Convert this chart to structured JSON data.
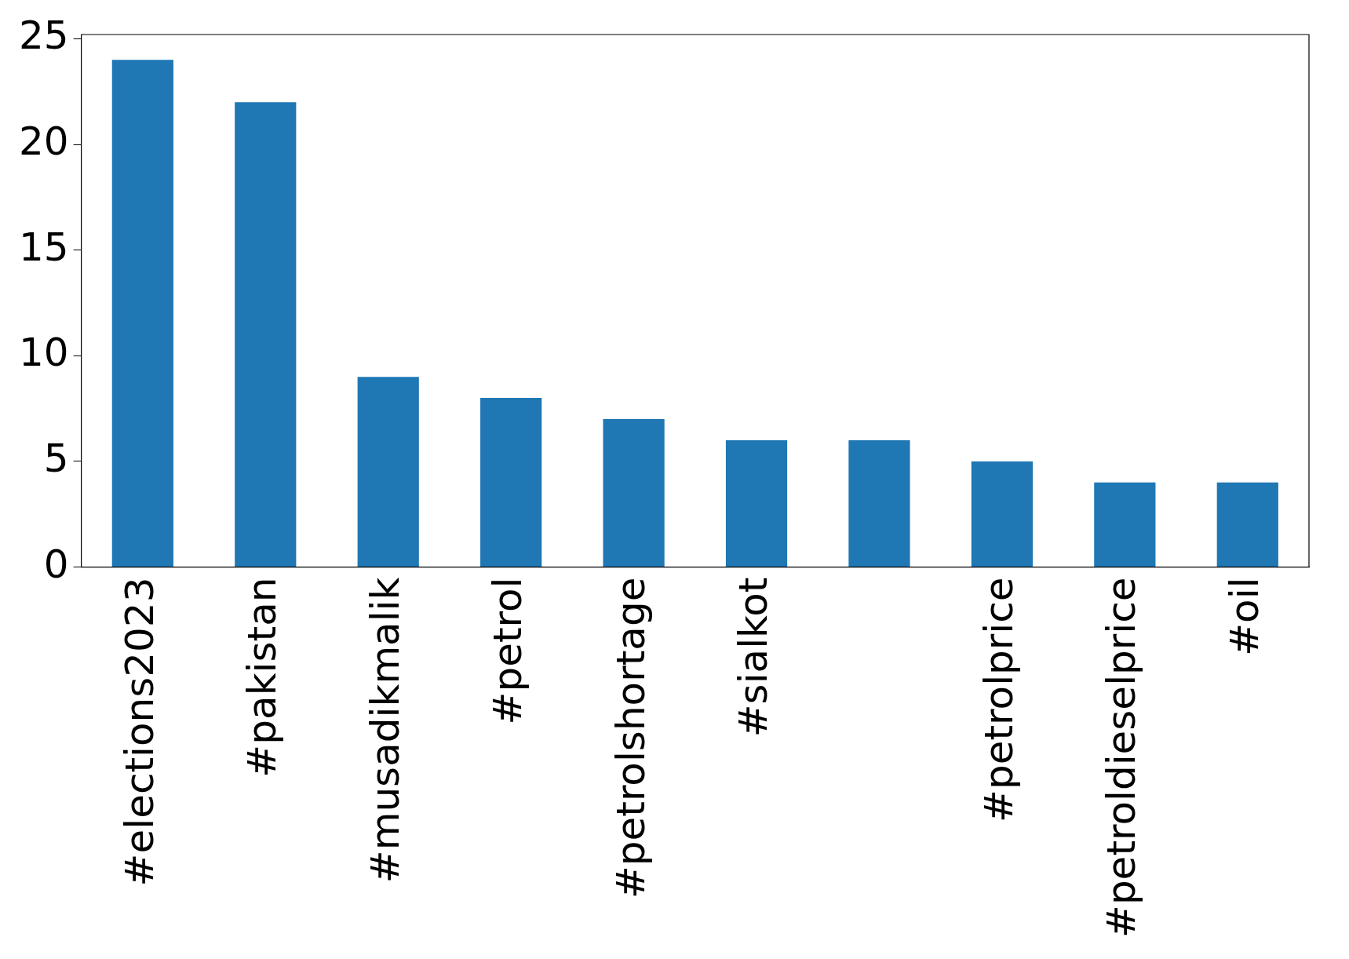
{
  "chart_data": {
    "type": "bar",
    "categories": [
      "#elections2023",
      "#pakistan",
      "#musadikmalik",
      "#petrol",
      "#petrolshortage",
      "#sialkot",
      null,
      "#petrolprice",
      "#petroldieselprice",
      "#oil"
    ],
    "values": [
      24,
      22,
      9,
      8,
      7,
      6,
      6,
      5,
      4,
      4
    ],
    "color": "#1f77b4",
    "ylim": [
      0,
      25.2
    ],
    "yticks": [
      0,
      5,
      10,
      15,
      20,
      25
    ],
    "grid": false,
    "legend": false
  }
}
